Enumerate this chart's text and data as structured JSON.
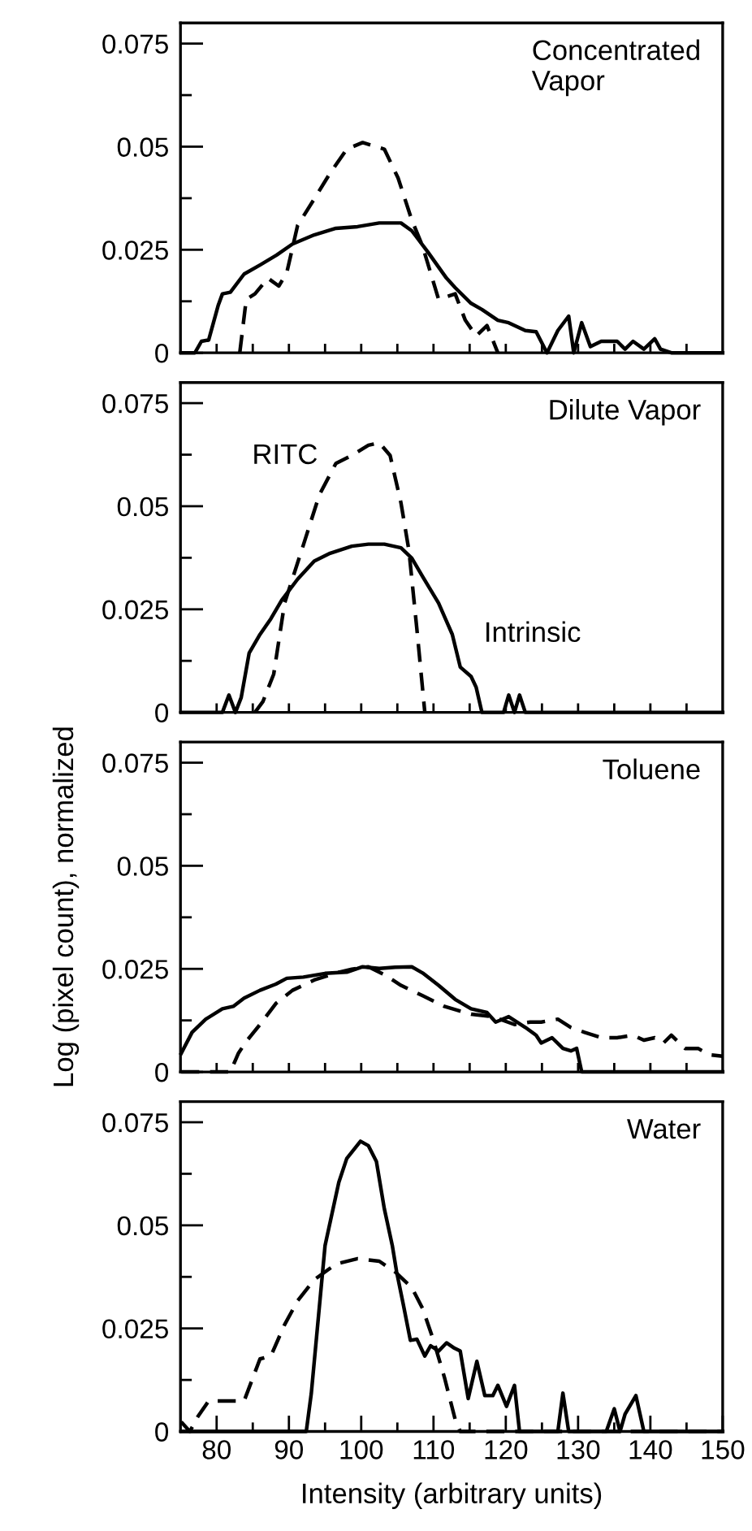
{
  "chart_data": [
    {
      "type": "line",
      "title": "Concentrated\nVapor",
      "tick_labels": "y",
      "grid": false,
      "xlim": [
        75,
        150
      ],
      "ylim": [
        0,
        0.08
      ],
      "xticks": [
        {
          "value": 80,
          "label": null
        },
        {
          "value": 85,
          "label": null
        },
        {
          "value": 90,
          "label": null
        },
        {
          "value": 95,
          "label": null
        },
        {
          "value": 100,
          "label": null
        },
        {
          "value": 105,
          "label": null
        },
        {
          "value": 110,
          "label": null
        },
        {
          "value": 115,
          "label": null
        },
        {
          "value": 120,
          "label": null
        },
        {
          "value": 125,
          "label": null
        },
        {
          "value": 130,
          "label": null
        },
        {
          "value": 135,
          "label": null
        },
        {
          "value": 140,
          "label": null
        },
        {
          "value": 145,
          "label": null
        }
      ],
      "yticks": [
        0,
        {
          "value": 0.0125,
          "label": null
        },
        0.025,
        {
          "value": 0.0375,
          "label": null
        },
        0.05,
        {
          "value": 0.0625,
          "label": null
        },
        0.075
      ],
      "series": [
        {
          "color": "#000000",
          "line_style": "solid",
          "x": [
            75.1,
            77.0,
            77.9,
            78.9,
            80.2,
            80.8,
            81.9,
            83.8,
            86.0,
            88.3,
            90.5,
            93.5,
            96.5,
            99.5,
            102.5,
            105.5,
            107.0,
            109.2,
            111.8,
            113.0,
            115.2,
            116.7,
            118.9,
            120.4,
            122.7,
            124.2,
            125.7,
            127.2,
            128.7,
            129.4,
            130.5,
            131.7,
            133.2,
            135.4,
            136.5,
            137.6,
            139.1,
            140.6,
            141.4,
            142.9,
            150
          ],
          "values": [
            0,
            0,
            0.0028,
            0.0031,
            0.0114,
            0.0143,
            0.0147,
            0.0191,
            0.0213,
            0.0237,
            0.0264,
            0.0286,
            0.0302,
            0.0306,
            0.0315,
            0.0315,
            0.0296,
            0.0245,
            0.0181,
            0.0158,
            0.012,
            0.0105,
            0.0079,
            0.0073,
            0.0054,
            0.0051,
            0,
            0.0054,
            0.0089,
            0,
            0.0073,
            0.0015,
            0.0028,
            0.0028,
            0.0009,
            0.0028,
            0.0009,
            0.0034,
            0.0009,
            0,
            0
          ]
        },
        {
          "color": "#000000",
          "line_style": "dashed",
          "x": [
            83.2,
            84.1,
            85.3,
            87.1,
            88.6,
            89.7,
            91.2,
            93.5,
            95.7,
            98.0,
            100.2,
            103.2,
            105.1,
            107.0,
            108.5,
            110.7,
            113.0,
            114.4,
            115.9,
            117.4,
            118.9
          ],
          "values": [
            0,
            0.013,
            0.0143,
            0.0181,
            0.0162,
            0.0194,
            0.0309,
            0.0373,
            0.0436,
            0.0494,
            0.051,
            0.0494,
            0.0424,
            0.0322,
            0.0258,
            0.013,
            0.0143,
            0.0079,
            0.0041,
            0.0066,
            0
          ]
        }
      ]
    },
    {
      "type": "line",
      "title": "Dilute Vapor",
      "tick_labels": "y",
      "grid": false,
      "xlim": [
        75,
        150
      ],
      "ylim": [
        0,
        0.08
      ],
      "xticks": [
        {
          "value": 80,
          "label": null
        },
        {
          "value": 85,
          "label": null
        },
        {
          "value": 90,
          "label": null
        },
        {
          "value": 95,
          "label": null
        },
        {
          "value": 100,
          "label": null
        },
        {
          "value": 105,
          "label": null
        },
        {
          "value": 110,
          "label": null
        },
        {
          "value": 115,
          "label": null
        },
        {
          "value": 120,
          "label": null
        },
        {
          "value": 125,
          "label": null
        },
        {
          "value": 130,
          "label": null
        },
        {
          "value": 135,
          "label": null
        },
        {
          "value": 140,
          "label": null
        },
        {
          "value": 145,
          "label": null
        }
      ],
      "yticks": [
        0,
        {
          "value": 0.0125,
          "label": null
        },
        0.025,
        {
          "value": 0.0375,
          "label": null
        },
        0.05,
        {
          "value": 0.0625,
          "label": null
        },
        0.075
      ],
      "series": [
        {
          "name": "Intrinsic",
          "color": "#000000",
          "line_style": "solid",
          "x": [
            75.1,
            80.8,
            81.7,
            82.6,
            83.4,
            84.5,
            86.0,
            87.5,
            89.0,
            91.2,
            93.5,
            95.7,
            98.7,
            101.0,
            103.2,
            105.5,
            107.0,
            108.5,
            110.7,
            112.6,
            113.7,
            115.2,
            115.9,
            116.7,
            119.7,
            120.4,
            121.2,
            121.9,
            122.7,
            150
          ],
          "values": [
            0,
            0,
            0.0042,
            0,
            0.0036,
            0.0144,
            0.0189,
            0.0227,
            0.0272,
            0.0323,
            0.0367,
            0.0386,
            0.0403,
            0.0408,
            0.0408,
            0.0399,
            0.0374,
            0.0329,
            0.0265,
            0.0189,
            0.011,
            0.0087,
            0.0061,
            0,
            0,
            0.0042,
            0,
            0.0042,
            0,
            0
          ]
        },
        {
          "name": "RITC",
          "color": "#000000",
          "line_style": "dashed",
          "x": [
            85.3,
            86.4,
            87.9,
            89.4,
            92.0,
            94.2,
            96.5,
            98.7,
            101.0,
            102.5,
            104.0,
            105.5,
            106.6,
            107.7,
            108.8
          ],
          "values": [
            0,
            0.0026,
            0.0093,
            0.0265,
            0.0406,
            0.0527,
            0.0604,
            0.0623,
            0.0648,
            0.0654,
            0.0623,
            0.0508,
            0.0393,
            0.0202,
            0
          ]
        }
      ]
    },
    {
      "type": "line",
      "title": "Toluene",
      "ylabel": "Log (pixel count), normalized",
      "tick_labels": "y",
      "grid": false,
      "xlim": [
        75,
        150
      ],
      "ylim": [
        0,
        0.08
      ],
      "xticks": [
        {
          "value": 80,
          "label": null
        },
        {
          "value": 85,
          "label": null
        },
        {
          "value": 90,
          "label": null
        },
        {
          "value": 95,
          "label": null
        },
        {
          "value": 100,
          "label": null
        },
        {
          "value": 105,
          "label": null
        },
        {
          "value": 110,
          "label": null
        },
        {
          "value": 115,
          "label": null
        },
        {
          "value": 120,
          "label": null
        },
        {
          "value": 125,
          "label": null
        },
        {
          "value": 130,
          "label": null
        },
        {
          "value": 135,
          "label": null
        },
        {
          "value": 140,
          "label": null
        },
        {
          "value": 145,
          "label": null
        }
      ],
      "yticks": [
        0,
        {
          "value": 0.0125,
          "label": null
        },
        0.025,
        {
          "value": 0.0375,
          "label": null
        },
        0.05,
        {
          "value": 0.0625,
          "label": null
        },
        0.075
      ],
      "series": [
        {
          "color": "#000000",
          "line_style": "solid",
          "x": [
            75.1,
            76.6,
            78.5,
            80.8,
            82.3,
            83.8,
            86.0,
            88.2,
            89.7,
            92.0,
            95.0,
            98.0,
            100.2,
            102.5,
            104.7,
            107.0,
            108.5,
            110.7,
            113.0,
            115.2,
            117.4,
            118.6,
            120.4,
            122.7,
            124.2,
            124.9,
            126.4,
            127.9,
            129.0,
            129.8,
            130.5,
            150
          ],
          "values": [
            0.0045,
            0.0096,
            0.0128,
            0.0153,
            0.0159,
            0.0179,
            0.0198,
            0.0213,
            0.0227,
            0.023,
            0.0239,
            0.0242,
            0.0255,
            0.0251,
            0.0254,
            0.0255,
            0.024,
            0.021,
            0.0176,
            0.0153,
            0.0144,
            0.0121,
            0.0134,
            0.0108,
            0.0089,
            0.007,
            0.0083,
            0.0057,
            0.0051,
            0.0057,
            0,
            0
          ]
        },
        {
          "color": "#000000",
          "line_style": "dashed",
          "x": [
            75.1,
            81.9,
            83.0,
            84.1,
            86.0,
            88.2,
            90.5,
            93.5,
            96.5,
            98.7,
            101.0,
            103.2,
            105.5,
            108.5,
            111.5,
            115.2,
            118.2,
            121.2,
            123.4,
            124.9,
            127.2,
            129.0,
            130.9,
            133.2,
            135.4,
            137.6,
            139.1,
            140.6,
            141.8,
            142.9,
            144.8,
            146.6,
            148.1,
            150
          ],
          "values": [
            0,
            0,
            0.0045,
            0.0074,
            0.0115,
            0.0166,
            0.0198,
            0.0223,
            0.024,
            0.0249,
            0.0255,
            0.0236,
            0.021,
            0.0185,
            0.0159,
            0.014,
            0.0134,
            0.0115,
            0.0121,
            0.0121,
            0.0128,
            0.0108,
            0.0096,
            0.0083,
            0.0083,
            0.0089,
            0.0077,
            0.0083,
            0.007,
            0.0089,
            0.0057,
            0.0057,
            0.0042,
            0.0038
          ]
        }
      ]
    },
    {
      "type": "line",
      "title": "Water",
      "xlabel": "Intensity (arbitrary units)",
      "grid": false,
      "xlim": [
        75,
        150
      ],
      "ylim": [
        0,
        0.08
      ],
      "xticks": [
        80,
        {
          "value": 85,
          "label": null
        },
        90,
        {
          "value": 95,
          "label": null
        },
        100,
        {
          "value": 105,
          "label": null
        },
        110,
        {
          "value": 115,
          "label": null
        },
        120,
        {
          "value": 125,
          "label": null
        },
        130,
        {
          "value": 135,
          "label": null
        },
        140,
        {
          "value": 145,
          "label": null
        },
        150
      ],
      "yticks": [
        0,
        {
          "value": 0.0125,
          "label": null
        },
        0.025,
        {
          "value": 0.0375,
          "label": null
        },
        0.05,
        {
          "value": 0.0625,
          "label": null
        },
        0.075
      ],
      "series": [
        {
          "color": "#000000",
          "line_style": "solid",
          "x": [
            75.1,
            92.4,
            93.1,
            95.0,
            96.9,
            98.0,
            99.9,
            101.0,
            102.1,
            103.2,
            104.3,
            104.9,
            105.8,
            106.8,
            107.7,
            108.8,
            109.6,
            110.7,
            111.8,
            112.9,
            113.7,
            114.8,
            116.0,
            117.1,
            118.2,
            118.9,
            120.1,
            121.2,
            121.9,
            127.2,
            127.9,
            128.7,
            133.9,
            135.0,
            135.8,
            136.5,
            138.0,
            139.1,
            150
          ],
          "values": [
            0,
            0,
            0.0093,
            0.0451,
            0.0604,
            0.0662,
            0.0704,
            0.0693,
            0.0655,
            0.054,
            0.0451,
            0.0387,
            0.031,
            0.0221,
            0.0224,
            0.0183,
            0.0208,
            0.0195,
            0.0215,
            0.0202,
            0.0195,
            0.008,
            0.017,
            0.0087,
            0.0087,
            0.0112,
            0.0061,
            0.0112,
            0,
            0,
            0.0093,
            0,
            0,
            0.0055,
            0,
            0.0042,
            0.0087,
            0,
            0
          ]
        },
        {
          "color": "#000000",
          "line_style": "dashed",
          "x": [
            75.1,
            76.3,
            77.4,
            78.9,
            80.0,
            83.8,
            86.0,
            87.5,
            89.4,
            91.2,
            93.5,
            96.5,
            99.5,
            102.5,
            104.7,
            107.0,
            108.5,
            110.0,
            111.5,
            113.0,
            113.7,
            150
          ],
          "values": [
            0.0023,
            0,
            0.0036,
            0.0074,
            0.0074,
            0.0074,
            0.0176,
            0.0183,
            0.0259,
            0.0317,
            0.0368,
            0.0406,
            0.0419,
            0.0413,
            0.0387,
            0.0349,
            0.0298,
            0.0221,
            0.0132,
            0.0029,
            0,
            0
          ]
        }
      ]
    }
  ]
}
